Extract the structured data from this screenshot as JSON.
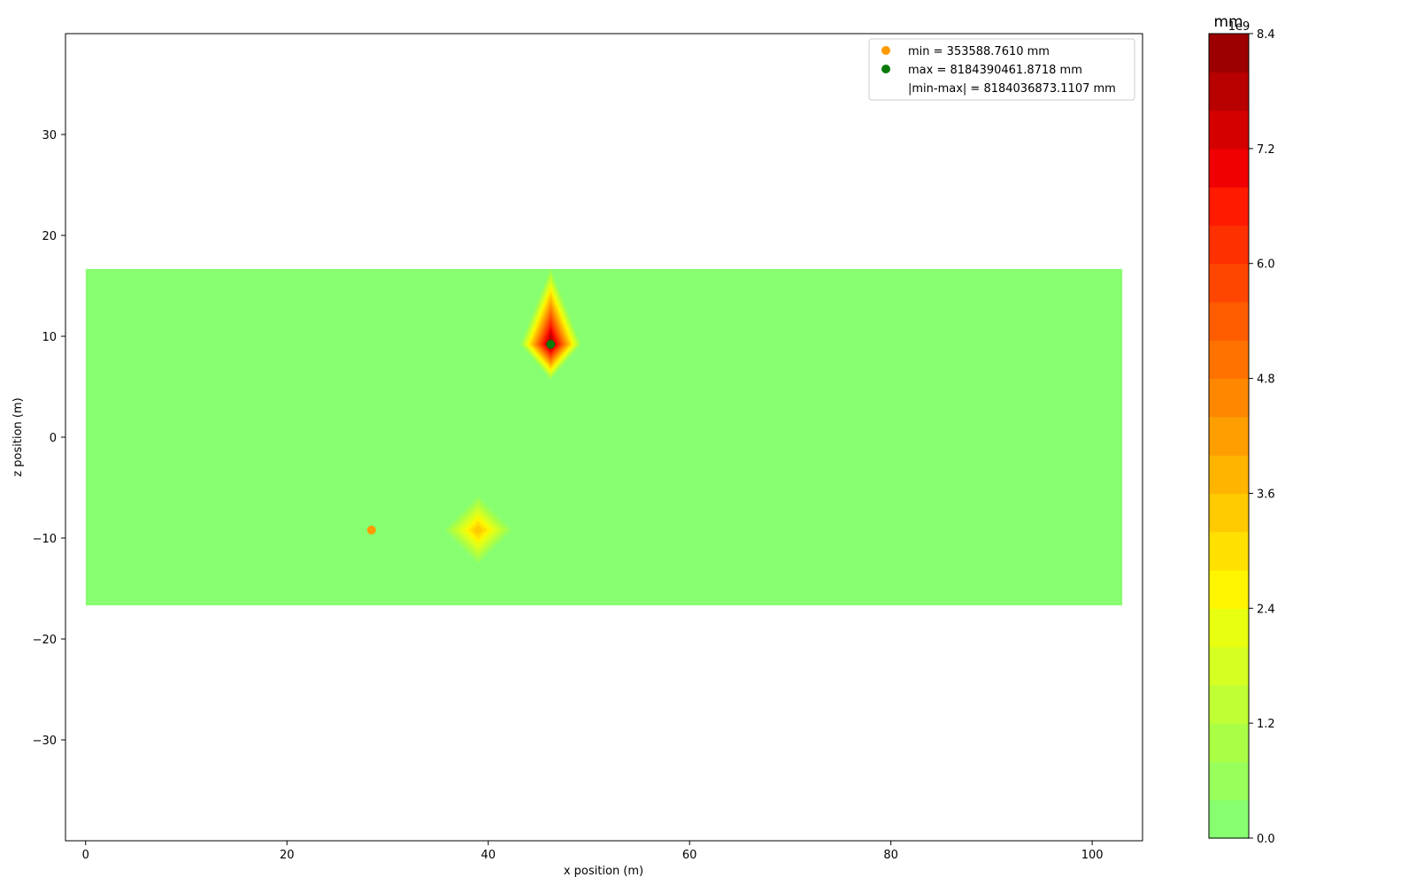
{
  "chart_data": {
    "type": "heatmap",
    "title": "",
    "xlabel": "x position (m)",
    "ylabel": "z position (m)",
    "xlim": [
      -2,
      105
    ],
    "ylim": [
      -40,
      40
    ],
    "xticks": [
      0,
      20,
      40,
      60,
      80,
      100
    ],
    "yticks": [
      -30,
      -20,
      -10,
      0,
      10,
      20,
      30
    ],
    "grid": false,
    "legend_position": "top-right",
    "domain": {
      "x": [
        0,
        103
      ],
      "z": [
        -16.67,
        16.67
      ]
    },
    "background_color": "#88ff70",
    "hotspots": [
      {
        "x": 46.2,
        "z": 9.2,
        "peak": 8184390461.8718,
        "rx": 3,
        "rz": 3.5,
        "stretch_up": 4
      },
      {
        "x": 39.0,
        "z": -9.2,
        "peak": 3300000000,
        "rx": 3.3,
        "rz": 3.3,
        "stretch_up": 0
      }
    ],
    "min_point": {
      "x": 28.4,
      "z": -9.2,
      "color": "#ff9a00"
    },
    "max_point": {
      "x": 46.2,
      "z": 9.2,
      "color": "#0a7a0a"
    },
    "legend": [
      {
        "label": "min = 353588.7610 mm",
        "marker_color": "#ff9a00"
      },
      {
        "label": "max = 8184390461.8718 mm",
        "marker_color": "#0a7a0a"
      },
      {
        "label": "|min-max| = 8184036873.1107 mm",
        "marker_color": ""
      }
    ],
    "colorbar": {
      "unit": "mm",
      "offset_label": "1e9",
      "range": [
        0,
        8.4
      ],
      "ticks": [
        0.0,
        1.2,
        2.4,
        3.6,
        4.8,
        6.0,
        7.2,
        8.4
      ],
      "tick_labels": [
        "0.0",
        "1.2",
        "2.4",
        "3.6",
        "4.8",
        "6.0",
        "7.2",
        "8.4"
      ],
      "levels": 21,
      "colors": [
        "#88ff70",
        "#99ff5a",
        "#aaff44",
        "#c0ff33",
        "#d6ff22",
        "#e8ff10",
        "#fff500",
        "#ffe000",
        "#ffca00",
        "#ffb400",
        "#ff9e00",
        "#ff8800",
        "#ff7200",
        "#ff5c00",
        "#ff4600",
        "#ff3000",
        "#ff1a00",
        "#f00000",
        "#d40000",
        "#b80000",
        "#9c0000",
        "#800000"
      ]
    }
  }
}
